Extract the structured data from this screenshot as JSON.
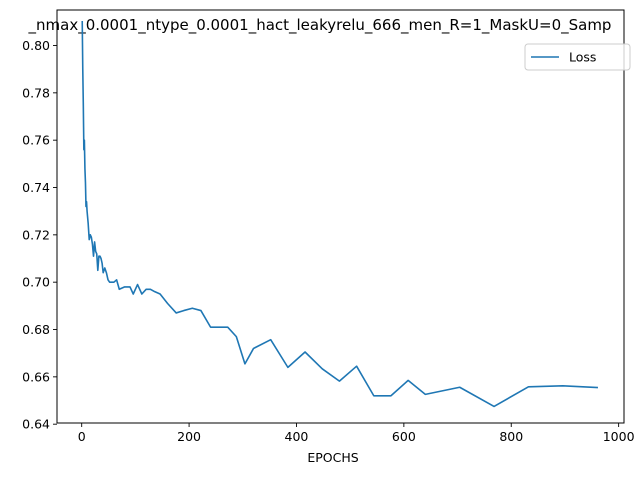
{
  "chart_data": {
    "type": "line",
    "title": "_nmax_0.0001_ntype_0.0001_hact_leakyrelu_666_men_R=1_MaskU=0_Samp",
    "xlabel": "EPOCHS",
    "ylabel": "",
    "xlim": [
      -46,
      1010
    ],
    "ylim": [
      0.6405,
      0.815
    ],
    "xticks": [
      0,
      200,
      400,
      600,
      800,
      1000
    ],
    "yticks": [
      0.64,
      0.66,
      0.68,
      0.7,
      0.72,
      0.74,
      0.76,
      0.78,
      0.8
    ],
    "grid": false,
    "legend_position": "top-right",
    "series": [
      {
        "name": "Loss",
        "color": "#1f77b4",
        "x": [
          1,
          2,
          3,
          4,
          5,
          6,
          7,
          8,
          9,
          10,
          12,
          14,
          16,
          18,
          20,
          22,
          24,
          26,
          28,
          30,
          32,
          34,
          36,
          38,
          40,
          43,
          46,
          49,
          52,
          56,
          60,
          65,
          70,
          80,
          90,
          96,
          104,
          112,
          120,
          128,
          136,
          146,
          160,
          176,
          190,
          206,
          222,
          240,
          256,
          272,
          288,
          304,
          320,
          352,
          384,
          416,
          448,
          480,
          512,
          544,
          576,
          608,
          640,
          704,
          768,
          832,
          896,
          960
        ],
        "y": [
          0.81,
          0.79,
          0.775,
          0.756,
          0.76,
          0.748,
          0.742,
          0.732,
          0.734,
          0.73,
          0.725,
          0.718,
          0.72,
          0.719,
          0.716,
          0.711,
          0.717,
          0.713,
          0.712,
          0.705,
          0.711,
          0.711,
          0.71,
          0.708,
          0.704,
          0.706,
          0.704,
          0.701,
          0.7,
          0.7,
          0.7,
          0.701,
          0.697,
          0.698,
          0.698,
          0.695,
          0.699,
          0.695,
          0.697,
          0.697,
          0.696,
          0.695,
          0.691,
          0.687,
          0.688,
          0.689,
          0.688,
          0.681,
          0.681,
          0.681,
          0.677,
          0.6655,
          0.672,
          0.6757,
          0.664,
          0.6705,
          0.6634,
          0.6582,
          0.6645,
          0.652,
          0.652,
          0.6585,
          0.6526,
          0.6556,
          0.6475,
          0.6558,
          0.6562,
          0.6555
        ]
      }
    ]
  }
}
